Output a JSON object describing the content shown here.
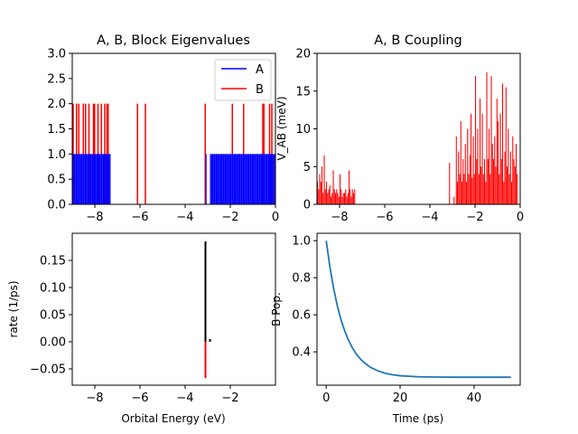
{
  "colors": {
    "A": "#0000ff",
    "B": "#ff0000",
    "population": "#1f77b4",
    "rate_black": "#000000"
  },
  "chart_data": [
    {
      "id": "eigenvalues",
      "type": "bar",
      "title": "A, B, Block Eigenvalues",
      "xlabel": "",
      "ylabel": "",
      "xlim": [
        -9,
        0
      ],
      "ylim": [
        0,
        3
      ],
      "xticks": [
        -8,
        -6,
        -4,
        -2,
        0
      ],
      "yticks": [
        0.0,
        0.5,
        1.0,
        1.5,
        2.0,
        2.5,
        3.0
      ],
      "xtick_labels": [
        "−8",
        "−6",
        "−4",
        "−2",
        "0"
      ],
      "ytick_labels": [
        "0.0",
        "0.5",
        "1.0",
        "1.5",
        "2.0",
        "2.5",
        "3.0"
      ],
      "legend": {
        "placement": "upper-right",
        "entries": [
          "A",
          "B"
        ]
      },
      "series": [
        {
          "name": "A",
          "value": 1.0,
          "x": [
            -9.0,
            -8.95,
            -8.9,
            -8.85,
            -8.8,
            -8.75,
            -8.7,
            -8.65,
            -8.6,
            -8.55,
            -8.5,
            -8.45,
            -8.4,
            -8.35,
            -8.3,
            -8.25,
            -8.2,
            -8.15,
            -8.1,
            -8.05,
            -8.0,
            -7.95,
            -7.9,
            -7.85,
            -7.8,
            -7.75,
            -7.7,
            -7.65,
            -7.6,
            -7.55,
            -7.5,
            -7.45,
            -7.4,
            -7.35,
            -3.1,
            -2.9,
            -2.85,
            -2.8,
            -2.75,
            -2.7,
            -2.65,
            -2.6,
            -2.55,
            -2.5,
            -2.45,
            -2.4,
            -2.35,
            -2.3,
            -2.25,
            -2.2,
            -2.15,
            -2.1,
            -2.05,
            -2.0,
            -1.95,
            -1.9,
            -1.85,
            -1.8,
            -1.75,
            -1.7,
            -1.65,
            -1.6,
            -1.55,
            -1.5,
            -1.45,
            -1.4,
            -1.35,
            -1.3,
            -1.25,
            -1.2,
            -1.15,
            -1.1,
            -1.05,
            -1.0,
            -0.95,
            -0.9,
            -0.85,
            -0.8,
            -0.75,
            -0.7,
            -0.65,
            -0.6,
            -0.55,
            -0.5,
            -0.45,
            -0.4,
            -0.35,
            -0.3,
            -0.25,
            -0.2,
            -0.15,
            -0.1,
            -0.05
          ]
        },
        {
          "name": "B",
          "value": 2.0,
          "x": [
            -9.0,
            -8.85,
            -8.75,
            -8.55,
            -8.45,
            -8.3,
            -8.1,
            -8.05,
            -7.9,
            -7.75,
            -7.6,
            -7.5,
            -7.45,
            -6.15,
            -5.8,
            -3.15,
            -1.95,
            -1.45,
            -0.6,
            -0.55,
            -0.3,
            -0.2
          ]
        }
      ]
    },
    {
      "id": "coupling",
      "type": "bar",
      "title": "A, B Coupling",
      "xlabel": "",
      "ylabel": "V_AB (meV)",
      "xlim": [
        -9,
        0
      ],
      "ylim": [
        0,
        20
      ],
      "xticks": [
        -8,
        -6,
        -4,
        -2,
        0
      ],
      "yticks": [
        0,
        5,
        10,
        15,
        20
      ],
      "xtick_labels": [
        "−8",
        "−6",
        "−4",
        "−2",
        "0"
      ],
      "ytick_labels": [
        "0",
        "5",
        "10",
        "15",
        "20"
      ],
      "series": [
        {
          "name": "B",
          "x": [
            -9.0,
            -8.95,
            -8.9,
            -8.85,
            -8.8,
            -8.75,
            -8.7,
            -8.65,
            -8.6,
            -8.55,
            -8.5,
            -8.45,
            -8.4,
            -8.35,
            -8.3,
            -8.25,
            -8.2,
            -8.15,
            -8.1,
            -8.05,
            -8.0,
            -7.95,
            -7.9,
            -7.85,
            -7.8,
            -7.75,
            -7.7,
            -7.65,
            -7.6,
            -7.55,
            -7.5,
            -7.45,
            -7.4,
            -7.35,
            -3.15,
            -2.95,
            -2.85,
            -2.8,
            -2.75,
            -2.7,
            -2.65,
            -2.6,
            -2.55,
            -2.5,
            -2.45,
            -2.4,
            -2.35,
            -2.3,
            -2.25,
            -2.2,
            -2.15,
            -2.1,
            -2.05,
            -2.0,
            -1.95,
            -1.9,
            -1.85,
            -1.8,
            -1.75,
            -1.7,
            -1.65,
            -1.6,
            -1.55,
            -1.5,
            -1.45,
            -1.4,
            -1.35,
            -1.3,
            -1.25,
            -1.2,
            -1.15,
            -1.1,
            -1.05,
            -1.0,
            -0.95,
            -0.9,
            -0.85,
            -0.8,
            -0.75,
            -0.7,
            -0.65,
            -0.6,
            -0.55,
            -0.5,
            -0.45,
            -0.4,
            -0.35,
            -0.3,
            -0.25,
            -0.2,
            -0.15
          ],
          "values": [
            3,
            2,
            4,
            3,
            5,
            1.5,
            6.5,
            2,
            3,
            1.5,
            2,
            2.5,
            1,
            1.5,
            4.5,
            2,
            1.5,
            2,
            1.5,
            1,
            4,
            2,
            1,
            1.5,
            1.5,
            2,
            1,
            1.5,
            4.5,
            2,
            1,
            2,
            1.5,
            2,
            5.5,
            1,
            9,
            3,
            7,
            4,
            11,
            3,
            6,
            4,
            8,
            3,
            10,
            4,
            6.5,
            12,
            3.5,
            9,
            4,
            17,
            6,
            10,
            4,
            14,
            5,
            12,
            4,
            6,
            3,
            17.5,
            6,
            10,
            4,
            17,
            8,
            6,
            9,
            5,
            14,
            11,
            4,
            12,
            6,
            16,
            3,
            7,
            15.5,
            5,
            10,
            4,
            7,
            3,
            9,
            6,
            5,
            8,
            4
          ]
        }
      ]
    },
    {
      "id": "rates",
      "type": "bar",
      "title": "",
      "xlabel": "Orbital Energy (eV)",
      "ylabel": "rate (1/ps)",
      "xlim": [
        -9,
        0
      ],
      "ylim": [
        -0.08,
        0.2
      ],
      "xticks": [
        -8,
        -6,
        -4,
        -2
      ],
      "yticks": [
        -0.05,
        0.0,
        0.05,
        0.1,
        0.15
      ],
      "xtick_labels": [
        "−8",
        "−6",
        "−4",
        "−2"
      ],
      "ytick_labels": [
        "−0.05",
        "0.00",
        "0.05",
        "0.10",
        "0.15"
      ],
      "series": [
        {
          "name": "",
          "color_key": "rate_black",
          "x": [
            -3.1,
            -2.9
          ],
          "values": [
            0.185,
            0.005
          ]
        },
        {
          "name": "",
          "color_key": "B",
          "x": [
            -3.1
          ],
          "values": [
            -0.067
          ]
        }
      ]
    },
    {
      "id": "population",
      "type": "line",
      "title": "",
      "xlabel": "Time (ps)",
      "ylabel": "B Pop.",
      "xlim": [
        -2.5,
        52.5
      ],
      "ylim": [
        0.22,
        1.04
      ],
      "xticks": [
        0,
        20,
        40
      ],
      "yticks": [
        0.4,
        0.6,
        0.8,
        1.0
      ],
      "xtick_labels": [
        "0",
        "20",
        "40"
      ],
      "ytick_labels": [
        "0.4",
        "0.6",
        "0.8",
        "1.0"
      ],
      "series": [
        {
          "name": "",
          "x": [
            0,
            1,
            2,
            3,
            4,
            5,
            6,
            7,
            8,
            9,
            10,
            12,
            14,
            16,
            18,
            20,
            25,
            30,
            35,
            40,
            45,
            50
          ],
          "y": [
            1.0,
            0.857,
            0.742,
            0.649,
            0.573,
            0.513,
            0.464,
            0.424,
            0.392,
            0.367,
            0.346,
            0.316,
            0.297,
            0.284,
            0.276,
            0.271,
            0.265,
            0.264,
            0.263,
            0.263,
            0.263,
            0.263
          ]
        }
      ]
    }
  ]
}
